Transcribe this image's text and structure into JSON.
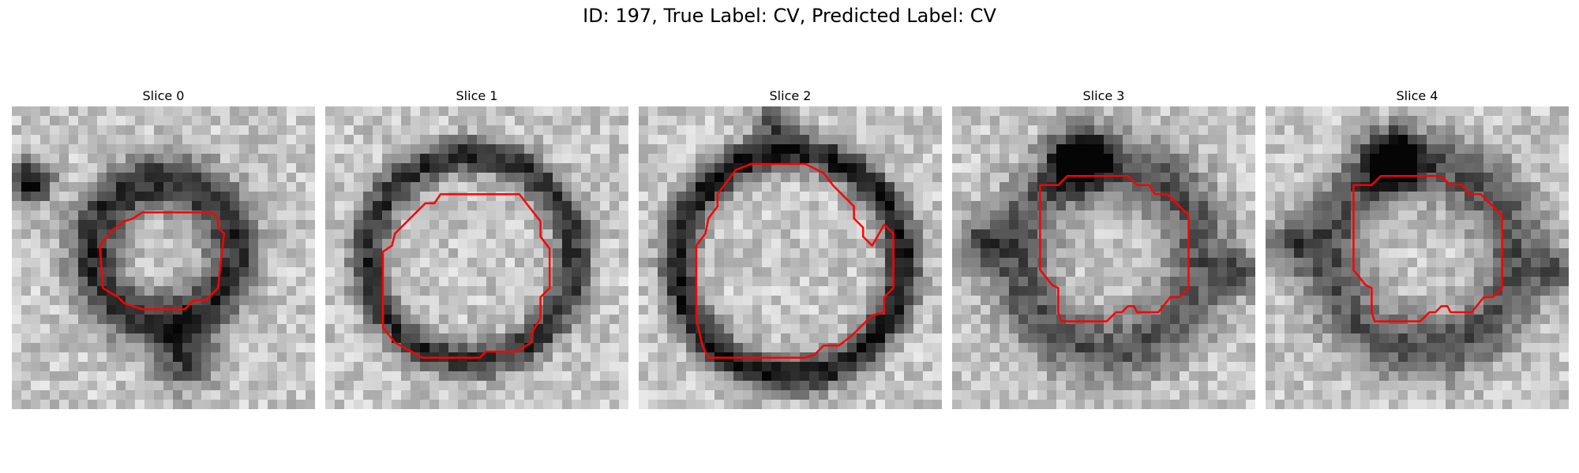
{
  "figure": {
    "title": "ID: 197, True Label: CV, Predicted Label: CV"
  },
  "colors": {
    "contour": "#ff0000",
    "background": "#ffffff"
  },
  "slices": [
    {
      "label": "Slice 0",
      "image": "grayscale-microscopy-patch",
      "contour": "cell-outline"
    },
    {
      "label": "Slice 1",
      "image": "grayscale-microscopy-patch",
      "contour": "cell-outline"
    },
    {
      "label": "Slice 2",
      "image": "grayscale-microscopy-patch",
      "contour": "cell-outline"
    },
    {
      "label": "Slice 3",
      "image": "grayscale-microscopy-patch",
      "contour": "cell-outline"
    },
    {
      "label": "Slice 4",
      "image": "grayscale-microscopy-patch",
      "contour": "cell-outline"
    }
  ]
}
